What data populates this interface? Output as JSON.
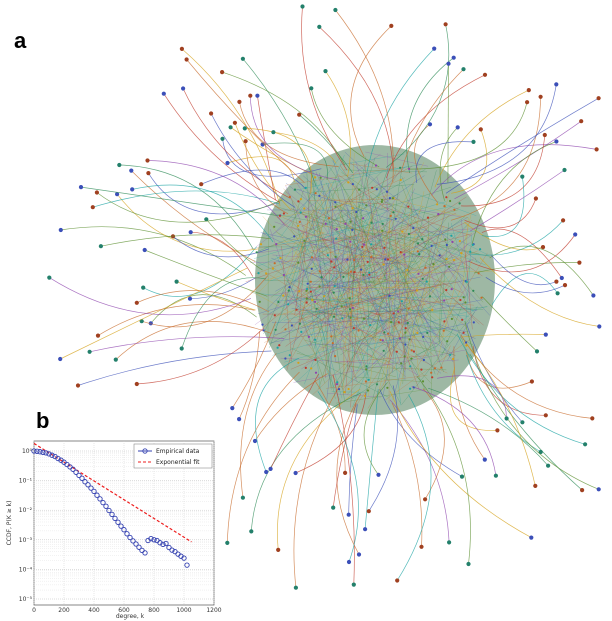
{
  "panels": {
    "a_label": "a",
    "b_label": "b"
  },
  "network": {
    "colors": [
      "#3b4fb8",
      "#2e8b57",
      "#c0392b",
      "#8e44ad",
      "#d4a017",
      "#1aa3a3",
      "#c76a2a",
      "#5b8f2f"
    ],
    "node_colors": [
      "#3b4fb8",
      "#23806b",
      "#a04020"
    ]
  },
  "chart_data": {
    "type": "scatter",
    "title": "",
    "xlabel": "degree, k",
    "ylabel": "CCDF, P(K ≥ k)",
    "xlim": [
      0,
      1200
    ],
    "xscale": "linear",
    "yscale": "log",
    "ylim": [
      1e-05,
      1
    ],
    "x_ticks": [
      0,
      200,
      400,
      600,
      800,
      1000,
      1200
    ],
    "y_ticks": [
      "10⁰",
      "10⁻¹",
      "10⁻²",
      "10⁻³",
      "10⁻⁴",
      "10⁻⁵"
    ],
    "grid": true,
    "legend_position": "top-right",
    "series": [
      {
        "name": "Empirical data",
        "kind": "markers",
        "color": "#3340b0",
        "points": [
          [
            0,
            1.0
          ],
          [
            20,
            0.98
          ],
          [
            40,
            0.95
          ],
          [
            60,
            0.9
          ],
          [
            80,
            0.86
          ],
          [
            100,
            0.8
          ],
          [
            120,
            0.72
          ],
          [
            140,
            0.65
          ],
          [
            160,
            0.56
          ],
          [
            180,
            0.49
          ],
          [
            200,
            0.42
          ],
          [
            220,
            0.35
          ],
          [
            240,
            0.29
          ],
          [
            260,
            0.24
          ],
          [
            280,
            0.19
          ],
          [
            300,
            0.15
          ],
          [
            320,
            0.12
          ],
          [
            340,
            0.092
          ],
          [
            360,
            0.072
          ],
          [
            380,
            0.056
          ],
          [
            400,
            0.043
          ],
          [
            420,
            0.032
          ],
          [
            440,
            0.024
          ],
          [
            460,
            0.018
          ],
          [
            480,
            0.0135
          ],
          [
            500,
            0.0098
          ],
          [
            520,
            0.0072
          ],
          [
            540,
            0.0053
          ],
          [
            560,
            0.0039
          ],
          [
            580,
            0.0029
          ],
          [
            600,
            0.0022
          ],
          [
            620,
            0.0016
          ],
          [
            640,
            0.0012
          ],
          [
            660,
            0.00092
          ],
          [
            680,
            0.00072
          ],
          [
            700,
            0.00056
          ],
          [
            720,
            0.00044
          ],
          [
            740,
            0.00036
          ],
          [
            760,
            0.00095
          ],
          [
            780,
            0.0011
          ],
          [
            800,
            0.001
          ],
          [
            820,
            0.00095
          ],
          [
            840,
            0.0008
          ],
          [
            860,
            0.0007
          ],
          [
            880,
            0.00075
          ],
          [
            900,
            0.00055
          ],
          [
            920,
            0.00045
          ],
          [
            940,
            0.0004
          ],
          [
            960,
            0.00033
          ],
          [
            980,
            0.00028
          ],
          [
            1000,
            0.00024
          ],
          [
            1020,
            0.00014
          ]
        ]
      },
      {
        "name": "Exponential fit",
        "kind": "dashed-line",
        "color": "#ee1c1c",
        "points": [
          [
            0,
            1.8
          ],
          [
            1050,
            0.00085
          ]
        ]
      }
    ]
  }
}
